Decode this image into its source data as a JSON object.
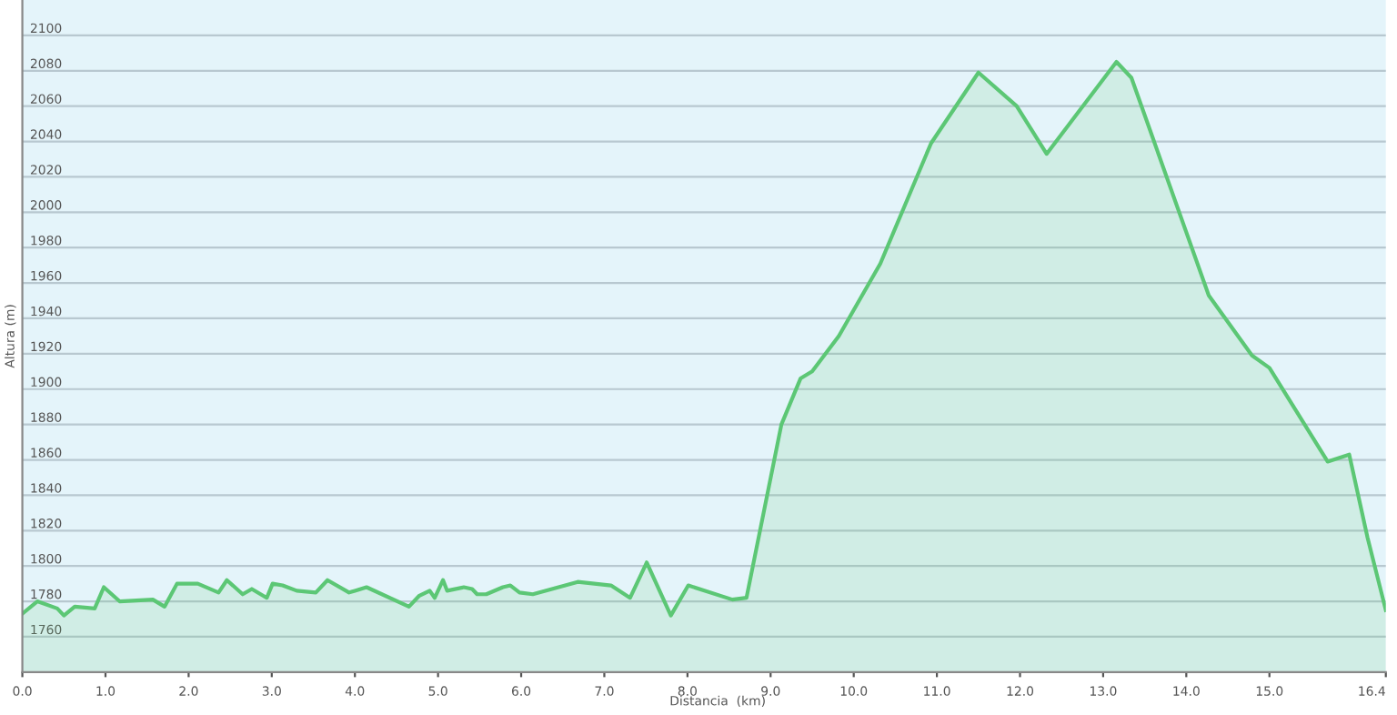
{
  "chart_data": {
    "type": "area",
    "xlabel": "Distancia  (km)",
    "ylabel": "Altura (m)",
    "x": [
      0,
      0.18,
      0.42,
      0.5,
      0.63,
      0.87,
      0.98,
      1.17,
      1.57,
      1.71,
      1.86,
      2.11,
      2.36,
      2.46,
      2.65,
      2.76,
      2.94,
      3.01,
      3.13,
      3.3,
      3.53,
      3.67,
      3.93,
      4.0,
      4.14,
      4.65,
      4.77,
      4.9,
      4.96,
      5.06,
      5.11,
      5.31,
      5.41,
      5.47,
      5.58,
      5.78,
      5.87,
      5.98,
      6.14,
      6.68,
      7.08,
      7.31,
      7.51,
      7.8,
      8.01,
      8.54,
      8.71,
      9.13,
      9.36,
      9.5,
      9.82,
      10.32,
      10.93,
      11.5,
      11.96,
      12.32,
      13.16,
      13.34,
      14.27,
      14.79,
      15.0,
      15.7,
      15.96,
      16.18,
      16.4
    ],
    "series": [
      {
        "color": "#5cc775",
        "values": [
          1773,
          1780,
          1776,
          1772,
          1777,
          1776,
          1788,
          1780,
          1781,
          1777,
          1790,
          1790,
          1785,
          1792,
          1784,
          1787,
          1782,
          1790,
          1789,
          1786,
          1785,
          1792,
          1785,
          1786,
          1788,
          1777,
          1783,
          1786,
          1782,
          1792,
          1786,
          1788,
          1787,
          1784,
          1784,
          1788,
          1789,
          1785,
          1784,
          1791,
          1789,
          1782,
          1802,
          1772,
          1789,
          1781,
          1782,
          1880,
          1906,
          1910,
          1930,
          1971,
          2039,
          2079,
          2060,
          2033,
          2085,
          2076,
          1953,
          1919,
          1912,
          1859,
          1863,
          1816,
          1775
        ]
      }
    ],
    "xlim": [
      0,
      16.4
    ],
    "ylim": [
      1740,
      2120
    ],
    "xticks": [
      {
        "value": 0,
        "label": "0.0"
      },
      {
        "value": 1,
        "label": "1.0"
      },
      {
        "value": 2,
        "label": "2.0"
      },
      {
        "value": 3,
        "label": "3.0"
      },
      {
        "value": 4,
        "label": "4.0"
      },
      {
        "value": 5,
        "label": "5.0"
      },
      {
        "value": 6,
        "label": "6.0"
      },
      {
        "value": 7,
        "label": "7.0"
      },
      {
        "value": 8,
        "label": "8.0"
      },
      {
        "value": 9,
        "label": "9.0"
      },
      {
        "value": 10,
        "label": "10.0"
      },
      {
        "value": 11,
        "label": "11.0"
      },
      {
        "value": 12,
        "label": "12.0"
      },
      {
        "value": 13,
        "label": "13.0"
      },
      {
        "value": 14,
        "label": "14.0"
      },
      {
        "value": 15,
        "label": "15.0"
      },
      {
        "value": 16.4,
        "label": "16.4"
      }
    ],
    "yticks": [
      1760,
      1780,
      1800,
      1820,
      1840,
      1860,
      1880,
      1900,
      1920,
      1940,
      1960,
      1980,
      2000,
      2020,
      2040,
      2060,
      2080,
      2100
    ],
    "grid": "y"
  }
}
